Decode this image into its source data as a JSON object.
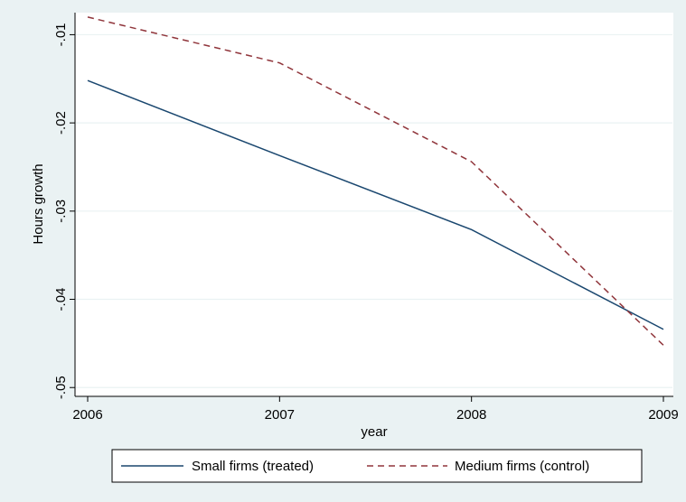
{
  "chart_data": {
    "type": "line",
    "title": "",
    "xlabel": "year",
    "ylabel": "Hours growth",
    "x": [
      2006,
      2007,
      2008,
      2009
    ],
    "x_tick_labels": [
      "2006",
      "2007",
      "2008",
      "2009"
    ],
    "y_ticks": [
      -0.05,
      -0.04,
      -0.03,
      -0.02,
      -0.01
    ],
    "y_tick_labels": [
      "-.05",
      "-.04",
      "-.03",
      "-.02",
      "-.01"
    ],
    "xlim": [
      2006,
      2009
    ],
    "ylim": [
      -0.051,
      -0.0075
    ],
    "grid": true,
    "legend_position": "bottom",
    "series": [
      {
        "name": "Small firms (treated)",
        "values": [
          -0.0152,
          -0.0237,
          -0.0321,
          -0.0434
        ],
        "color": "#1a476f",
        "style": "solid"
      },
      {
        "name": "Medium firms (control)",
        "values": [
          -0.008,
          -0.0132,
          -0.0244,
          -0.0452
        ],
        "color": "#90353b",
        "style": "dashed"
      }
    ]
  },
  "colors": {
    "background": "#eaf2f3",
    "plot_background": "#ffffff",
    "grid": "#eaf2f3"
  }
}
